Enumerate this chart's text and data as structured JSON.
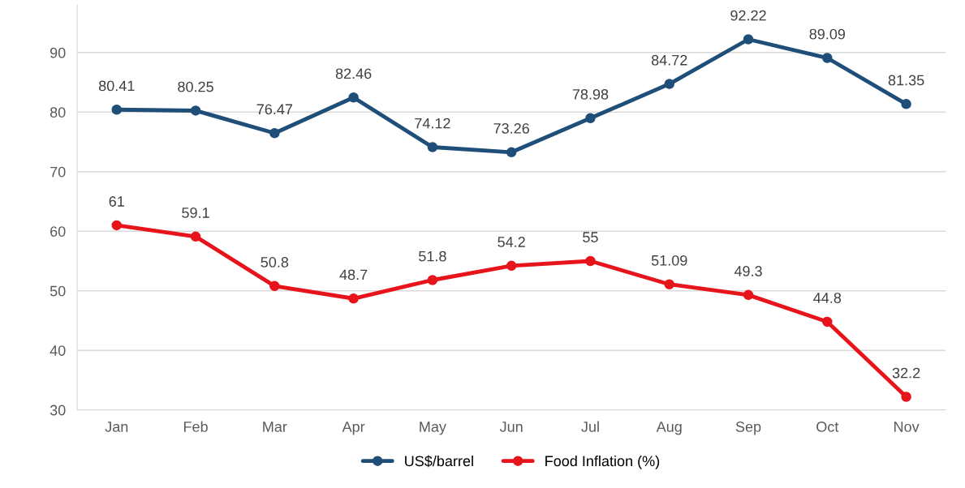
{
  "chart_data": {
    "type": "line",
    "categories": [
      "Jan",
      "Feb",
      "Mar",
      "Apr",
      "May",
      "Jun",
      "Jul",
      "Aug",
      "Sep",
      "Oct",
      "Nov"
    ],
    "series": [
      {
        "name": "US$/barrel",
        "color": "#1f4e79",
        "values": [
          80.41,
          80.25,
          76.47,
          82.46,
          74.12,
          73.26,
          78.98,
          84.72,
          92.22,
          89.09,
          81.35
        ]
      },
      {
        "name": "Food Inflation (%)",
        "color": "#e8141b",
        "values": [
          61,
          59.1,
          50.8,
          48.7,
          51.8,
          54.2,
          55,
          51.09,
          49.3,
          44.8,
          32.2
        ]
      }
    ],
    "ylim": [
      30,
      98
    ],
    "yticks": [
      30,
      40,
      50,
      60,
      70,
      80,
      90
    ],
    "grid": "y",
    "legend": "bottom",
    "marker": "circle",
    "line_style": "solid",
    "data_labels": true
  }
}
